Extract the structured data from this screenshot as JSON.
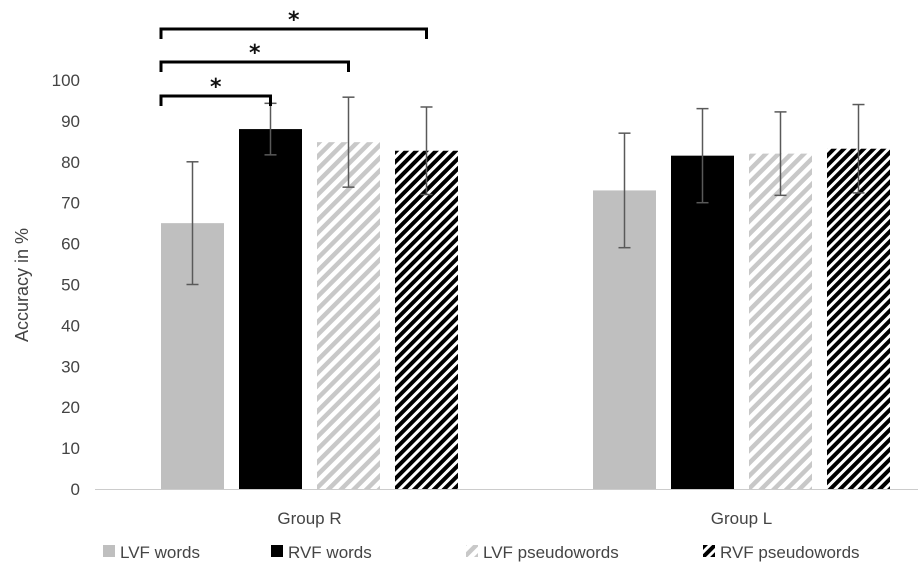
{
  "chart_data": {
    "type": "bar",
    "ylabel": "Accuracy in %",
    "ylim": [
      0,
      100
    ],
    "yticks": [
      "0",
      "10",
      "20",
      "30",
      "40",
      "50",
      "60",
      "70",
      "80",
      "90",
      "100"
    ],
    "categories": [
      "Group R",
      "Group L"
    ],
    "series": [
      {
        "name": "LVF words",
        "values": [
          65,
          73
        ],
        "errors": [
          15,
          14
        ],
        "fill": "solid-light",
        "color": "#bfbfbf"
      },
      {
        "name": "RVF words",
        "values": [
          88,
          81.5
        ],
        "errors": [
          6.3,
          11.5
        ],
        "fill": "solid-dark",
        "color": "#000000"
      },
      {
        "name": "LVF pseudowords",
        "values": [
          84.8,
          82
        ],
        "errors": [
          11,
          10.2
        ],
        "fill": "hatch-light",
        "color": "#bfbfbf"
      },
      {
        "name": "RVF pseudowords",
        "values": [
          82.7,
          83.2
        ],
        "errors": [
          10.7,
          10.8
        ],
        "fill": "hatch-dark",
        "color": "#000000"
      }
    ],
    "significance": [
      {
        "group": 0,
        "from_series": 0,
        "to_series": 1,
        "label": "*"
      },
      {
        "group": 0,
        "from_series": 0,
        "to_series": 2,
        "label": "*"
      },
      {
        "group": 0,
        "from_series": 0,
        "to_series": 3,
        "label": "*"
      }
    ],
    "legend_position": "bottom",
    "grid": false
  }
}
